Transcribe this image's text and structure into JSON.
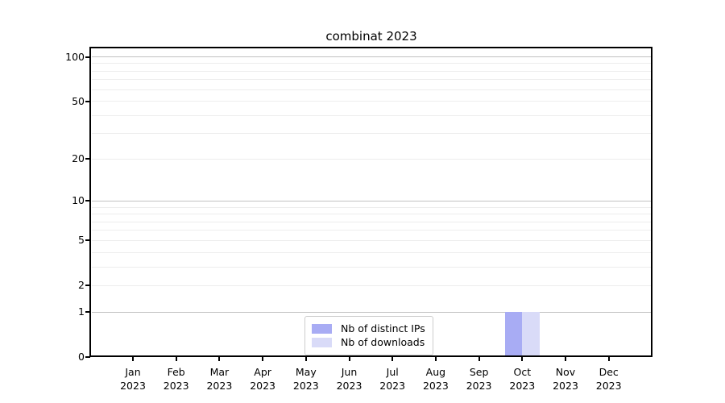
{
  "chart_data": {
    "type": "bar",
    "title": "combinat 2023",
    "categories": [
      {
        "month": "Jan",
        "year": "2023"
      },
      {
        "month": "Feb",
        "year": "2023"
      },
      {
        "month": "Mar",
        "year": "2023"
      },
      {
        "month": "Apr",
        "year": "2023"
      },
      {
        "month": "May",
        "year": "2023"
      },
      {
        "month": "Jun",
        "year": "2023"
      },
      {
        "month": "Jul",
        "year": "2023"
      },
      {
        "month": "Aug",
        "year": "2023"
      },
      {
        "month": "Sep",
        "year": "2023"
      },
      {
        "month": "Oct",
        "year": "2023"
      },
      {
        "month": "Nov",
        "year": "2023"
      },
      {
        "month": "Dec",
        "year": "2023"
      }
    ],
    "series": [
      {
        "name": "Nb of distinct IPs",
        "color": "#a8acf4",
        "values": [
          0,
          0,
          0,
          0,
          0,
          0,
          0,
          0,
          0,
          1,
          0,
          0
        ]
      },
      {
        "name": "Nb of downloads",
        "color": "#d9dbf8",
        "values": [
          0,
          0,
          0,
          0,
          0,
          0,
          0,
          0,
          0,
          1,
          0,
          0
        ]
      }
    ],
    "xlabel": "",
    "ylabel": "",
    "yscale": "log1p",
    "ylim": [
      0,
      115
    ],
    "yticks": [
      0,
      1,
      2,
      5,
      10,
      20,
      50,
      100
    ],
    "major_grid_values": [
      1,
      10,
      100
    ],
    "minor_grid_values": [
      2,
      3,
      4,
      5,
      6,
      7,
      8,
      9,
      20,
      30,
      40,
      50,
      60,
      70,
      80,
      90
    ],
    "grid": true,
    "legend_position": "lower center",
    "colors": {
      "major_grid": "#c2c2c2",
      "minor_grid": "#ededed",
      "axis": "#000000",
      "background": "#ffffff",
      "legend_border": "#cccccc"
    }
  }
}
